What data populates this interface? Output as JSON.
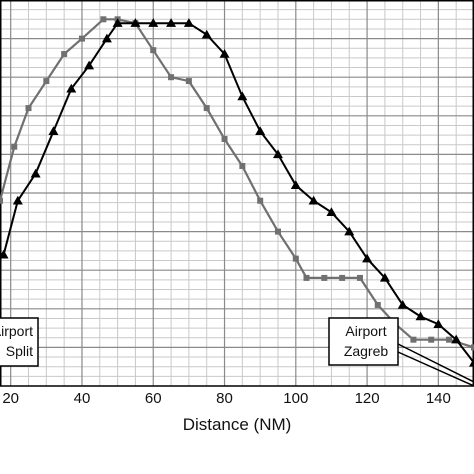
{
  "chart_data": {
    "type": "line",
    "title": "",
    "xlabel": "Distance (NM)",
    "ylabel": "",
    "xlim": [
      17,
      150
    ],
    "ylim": [
      0,
      100
    ],
    "x_ticks": [
      20,
      40,
      60,
      80,
      100,
      120,
      140
    ],
    "x_tick_labels": [
      "20",
      "40",
      "60",
      "80",
      "100",
      "120",
      "140"
    ],
    "grid": true,
    "legend": "none",
    "series": [
      {
        "marker": "square",
        "color": "#707070",
        "x": [
          17,
          21,
          25,
          30,
          35,
          40,
          46,
          50,
          55,
          60,
          65,
          70,
          75,
          80,
          85,
          90,
          95,
          100,
          103,
          108,
          113,
          118,
          123,
          128,
          133,
          138,
          143,
          150
        ],
        "y": [
          48,
          62,
          72,
          79,
          86,
          90,
          95,
          95,
          94,
          87,
          80,
          79,
          72,
          64,
          57,
          48,
          40,
          33,
          28,
          28,
          28,
          28,
          21,
          16,
          12,
          12,
          12,
          10
        ]
      },
      {
        "marker": "triangle",
        "color": "#000000",
        "x": [
          18,
          22,
          27,
          32,
          37,
          42,
          47,
          50,
          55,
          60,
          65,
          70,
          75,
          80,
          85,
          90,
          95,
          100,
          105,
          110,
          115,
          120,
          125,
          130,
          135,
          140,
          145,
          150
        ],
        "y": [
          34,
          48,
          55,
          66,
          77,
          83,
          90,
          94,
          94,
          94,
          94,
          94,
          91,
          86,
          75,
          66,
          60,
          52,
          48,
          45,
          40,
          33,
          28,
          21,
          18,
          16,
          12,
          6
        ]
      }
    ],
    "annotations": [
      {
        "lines": [
          "Airport",
          "Split"
        ]
      },
      {
        "lines": [
          "Airport",
          "Zagreb"
        ]
      }
    ]
  }
}
